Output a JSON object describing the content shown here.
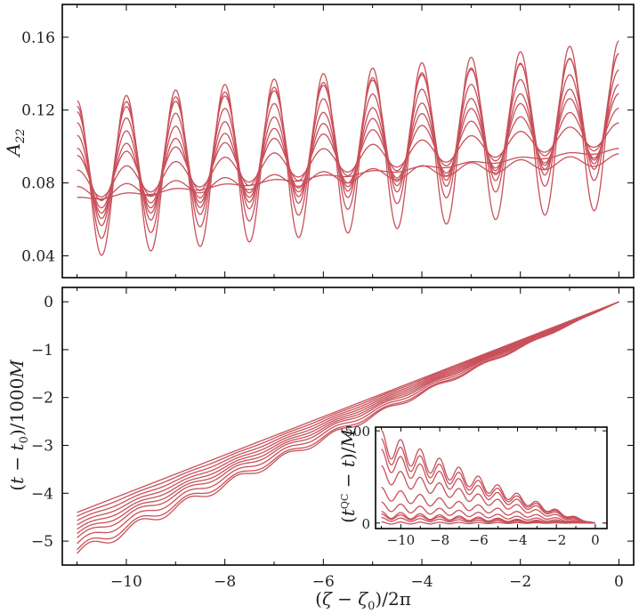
{
  "chart_data": [
    {
      "type": "line",
      "panel": "top",
      "ylabel": "A22",
      "ylabel_main": "A",
      "ylabel_sub": "22",
      "xlabel": "",
      "xlim": [
        -11.3,
        0.3
      ],
      "ylim": [
        0.028,
        0.178
      ],
      "x_ticks": [
        -10,
        -8,
        -6,
        -4,
        -2,
        0
      ],
      "y_ticks": [
        0.04,
        0.08,
        0.12,
        0.16
      ],
      "y_tick_labels": [
        "0.04",
        "0.08",
        "0.12",
        "0.16"
      ],
      "curve_color": "#c8505a",
      "series_model": "oscillating amplitude, one cycle per unit x",
      "series": [
        {
          "name": "curve-1",
          "mean_start": 0.071,
          "mean_end": 0.098,
          "amp_start": 0.001,
          "amp_end": 0.001
        },
        {
          "name": "curve-2",
          "mean_start": 0.074,
          "mean_end": 0.093,
          "amp_start": 0.004,
          "amp_end": 0.003
        },
        {
          "name": "curve-3",
          "mean_start": 0.079,
          "mean_end": 0.107,
          "amp_start": 0.008,
          "amp_end": 0.006
        },
        {
          "name": "curve-4",
          "mean_start": 0.082,
          "mean_end": 0.11,
          "amp_start": 0.013,
          "amp_end": 0.011
        },
        {
          "name": "curve-5",
          "mean_start": 0.082,
          "mean_end": 0.112,
          "amp_start": 0.017,
          "amp_end": 0.017
        },
        {
          "name": "curve-6",
          "mean_start": 0.084,
          "mean_end": 0.114,
          "amp_start": 0.022,
          "amp_end": 0.02
        },
        {
          "name": "curve-7",
          "mean_start": 0.086,
          "mean_end": 0.117,
          "amp_start": 0.027,
          "amp_end": 0.025
        },
        {
          "name": "curve-8",
          "mean_start": 0.087,
          "mean_end": 0.12,
          "amp_start": 0.032,
          "amp_end": 0.031
        },
        {
          "name": "curve-9",
          "mean_start": 0.085,
          "mean_end": 0.117,
          "amp_start": 0.037,
          "amp_end": 0.034
        },
        {
          "name": "curve-10",
          "mean_start": 0.082,
          "mean_end": 0.112,
          "amp_start": 0.043,
          "amp_end": 0.046
        }
      ]
    },
    {
      "type": "line",
      "panel": "bottom",
      "ylabel": "(t − t0)/1000M",
      "ylabel_parts": [
        "(",
        "t",
        " − ",
        "t",
        "0",
        ")/1000",
        "M"
      ],
      "xlabel": "(ζ − ζ0)/2π",
      "xlabel_parts": [
        "(",
        "ζ",
        " − ",
        "ζ",
        "0",
        ")/2π"
      ],
      "xlim": [
        -11.3,
        0.3
      ],
      "ylim": [
        -5.5,
        0.3
      ],
      "x_ticks": [
        -10,
        -8,
        -6,
        -4,
        -2,
        0
      ],
      "x_tick_labels": [
        "−10",
        "−8",
        "−6",
        "−4",
        "−2",
        "0"
      ],
      "y_ticks": [
        0,
        -1,
        -2,
        -3,
        -4,
        -5
      ],
      "y_tick_labels": [
        "0",
        "−1",
        "−2",
        "−3",
        "−4",
        "−5"
      ],
      "curve_color": "#c8505a",
      "series": [
        {
          "name": "curve-1",
          "end_value": -4.4,
          "wiggle": 0.0
        },
        {
          "name": "curve-2",
          "end_value": -4.48,
          "wiggle": 0.01
        },
        {
          "name": "curve-3",
          "end_value": -4.57,
          "wiggle": 0.02
        },
        {
          "name": "curve-4",
          "end_value": -4.66,
          "wiggle": 0.03
        },
        {
          "name": "curve-5",
          "end_value": -4.75,
          "wiggle": 0.04
        },
        {
          "name": "curve-6",
          "end_value": -4.84,
          "wiggle": 0.055
        },
        {
          "name": "curve-7",
          "end_value": -4.93,
          "wiggle": 0.07
        },
        {
          "name": "curve-8",
          "end_value": -5.05,
          "wiggle": 0.085
        },
        {
          "name": "curve-9",
          "end_value": -5.18,
          "wiggle": 0.1
        },
        {
          "name": "curve-10",
          "end_value": -5.26,
          "wiggle": 0.115
        }
      ]
    },
    {
      "type": "line",
      "panel": "inset",
      "ylabel": "(tQC − t)/M",
      "ylabel_parts": [
        "(",
        "t",
        "QC",
        " − ",
        "t",
        ")/",
        "M"
      ],
      "xlim": [
        -11.3,
        0.6
      ],
      "ylim": [
        -30,
        520
      ],
      "x_ticks": [
        -10,
        -8,
        -6,
        -4,
        -2,
        0
      ],
      "x_tick_labels": [
        "−10",
        "−8",
        "−6",
        "−4",
        "−2",
        "0"
      ],
      "y_ticks": [
        0,
        500
      ],
      "y_tick_labels": [
        "0",
        "500"
      ],
      "curve_color": "#c8505a",
      "series": [
        {
          "name": "inset-curve-1",
          "start_value": 0,
          "osc": 6
        },
        {
          "name": "inset-curve-2",
          "start_value": 20,
          "osc": 10
        },
        {
          "name": "inset-curve-3",
          "start_value": 35,
          "osc": 14
        },
        {
          "name": "inset-curve-4",
          "start_value": 45,
          "osc": 18
        },
        {
          "name": "inset-curve-5",
          "start_value": 90,
          "osc": 24
        },
        {
          "name": "inset-curve-6",
          "start_value": 160,
          "osc": 34
        },
        {
          "name": "inset-curve-7",
          "start_value": 265,
          "osc": 46
        },
        {
          "name": "inset-curve-8",
          "start_value": 345,
          "osc": 56
        },
        {
          "name": "inset-curve-9",
          "start_value": 395,
          "osc": 62
        },
        {
          "name": "inset-curve-10",
          "start_value": 435,
          "osc": 68
        }
      ]
    }
  ]
}
